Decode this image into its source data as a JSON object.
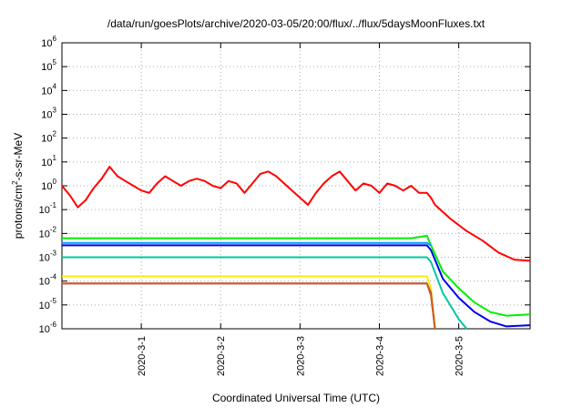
{
  "chart_data": {
    "type": "line",
    "title": "/data/run/goesPlots/archive/2020-03-05/20:00/flux/../flux/5daysMoonFluxes.txt",
    "xlabel": "Coordinated Universal Time (UTC)",
    "ylabel": "protons/cm2-s-sr-MeV",
    "ylabel_parts": {
      "base": "protons/cm",
      "sup": "2",
      "rest": "-s-sr-MeV"
    },
    "yscale": "log",
    "ylim_exp": [
      -6,
      6
    ],
    "y_ticks": [
      {
        "base": "10",
        "exp": "6",
        "e": 6
      },
      {
        "base": "10",
        "exp": "5",
        "e": 5
      },
      {
        "base": "10",
        "exp": "4",
        "e": 4
      },
      {
        "base": "10",
        "exp": "3",
        "e": 3
      },
      {
        "base": "10",
        "exp": "2",
        "e": 2
      },
      {
        "base": "10",
        "exp": "1",
        "e": 1
      },
      {
        "base": "10",
        "exp": "0",
        "e": 0
      },
      {
        "base": "10",
        "exp": "-1",
        "e": -1
      },
      {
        "base": "10",
        "exp": "-2",
        "e": -2
      },
      {
        "base": "10",
        "exp": "-3",
        "e": -3
      },
      {
        "base": "10",
        "exp": "-4",
        "e": -4
      },
      {
        "base": "10",
        "exp": "-5",
        "e": -5
      },
      {
        "base": "10",
        "exp": "-6",
        "e": -6
      }
    ],
    "x_range_days": [
      29.0,
      34.9
    ],
    "x_ticks": [
      {
        "label": "2020-3-1",
        "day": 30
      },
      {
        "label": "2020-3-2",
        "day": 31
      },
      {
        "label": "2020-3-3",
        "day": 32
      },
      {
        "label": "2020-3-4",
        "day": 33
      },
      {
        "label": "2020-3-5",
        "day": 34
      }
    ],
    "grid": "dotted",
    "series": [
      {
        "color": "#ff0000",
        "x_day": [
          29.0,
          29.1,
          29.2,
          29.3,
          29.4,
          29.5,
          29.6,
          29.7,
          29.8,
          29.9,
          30.0,
          30.1,
          30.2,
          30.3,
          30.4,
          30.5,
          30.6,
          30.7,
          30.8,
          30.9,
          31.0,
          31.1,
          31.2,
          31.3,
          31.4,
          31.5,
          31.6,
          31.7,
          31.8,
          31.9,
          32.0,
          32.1,
          32.2,
          32.3,
          32.4,
          32.5,
          32.6,
          32.7,
          32.8,
          32.9,
          33.0,
          33.1,
          33.2,
          33.3,
          33.4,
          33.5,
          33.6,
          33.65,
          33.7,
          33.9,
          34.1,
          34.3,
          34.5,
          34.7,
          34.9
        ],
        "log10_y": [
          0.0,
          -0.4,
          -0.9,
          -0.6,
          -0.1,
          0.3,
          0.8,
          0.4,
          0.2,
          0.0,
          -0.2,
          -0.3,
          0.1,
          0.4,
          0.2,
          0.0,
          0.2,
          0.3,
          0.2,
          0.0,
          -0.1,
          0.2,
          0.1,
          -0.3,
          0.1,
          0.5,
          0.6,
          0.4,
          0.1,
          -0.2,
          -0.5,
          -0.8,
          -0.3,
          0.1,
          0.4,
          0.6,
          0.2,
          -0.2,
          0.1,
          0.0,
          -0.3,
          0.1,
          0.0,
          -0.2,
          0.0,
          -0.3,
          -0.3,
          -0.5,
          -0.8,
          -1.4,
          -1.9,
          -2.3,
          -2.8,
          -3.1,
          -3.15
        ]
      },
      {
        "color": "#00ee00",
        "x_day": [
          29.0,
          29.4,
          29.8,
          30.2,
          30.6,
          31.0,
          31.4,
          31.8,
          32.2,
          32.6,
          33.0,
          33.4,
          33.6,
          33.65,
          33.8,
          34.0,
          34.2,
          34.4,
          34.6,
          34.9
        ],
        "log10_y": [
          -2.2,
          -2.2,
          -2.2,
          -2.2,
          -2.2,
          -2.2,
          -2.2,
          -2.2,
          -2.2,
          -2.2,
          -2.2,
          -2.2,
          -2.1,
          -2.5,
          -3.6,
          -4.3,
          -4.9,
          -5.3,
          -5.45,
          -5.4
        ]
      },
      {
        "color": "#009cff",
        "x_day": [
          29.0,
          29.4,
          29.8,
          30.2,
          30.6,
          31.0,
          31.4,
          31.8,
          32.2,
          32.6,
          33.0,
          33.4,
          33.6,
          33.65
        ],
        "log10_y": [
          -2.4,
          -2.4,
          -2.4,
          -2.4,
          -2.4,
          -2.4,
          -2.4,
          -2.4,
          -2.4,
          -2.4,
          -2.4,
          -2.4,
          -2.4,
          -2.5
        ]
      },
      {
        "color": "#0000ee",
        "x_day": [
          29.0,
          29.4,
          29.8,
          30.2,
          30.6,
          31.0,
          31.4,
          31.8,
          32.2,
          32.6,
          33.0,
          33.4,
          33.6,
          33.65,
          33.8,
          34.0,
          34.2,
          34.4,
          34.6,
          34.9
        ],
        "log10_y": [
          -2.5,
          -2.5,
          -2.5,
          -2.5,
          -2.5,
          -2.5,
          -2.5,
          -2.5,
          -2.5,
          -2.5,
          -2.5,
          -2.5,
          -2.5,
          -2.7,
          -3.9,
          -4.7,
          -5.3,
          -5.7,
          -5.9,
          -5.85
        ]
      },
      {
        "color": "#00c8a0",
        "x_day": [
          29.0,
          29.4,
          29.8,
          30.2,
          30.6,
          31.0,
          31.4,
          31.8,
          32.2,
          32.6,
          33.0,
          33.4,
          33.6,
          33.65,
          33.8,
          34.0,
          34.1
        ],
        "log10_y": [
          -3.0,
          -3.0,
          -3.0,
          -3.0,
          -3.0,
          -3.0,
          -3.0,
          -3.0,
          -3.0,
          -3.0,
          -3.0,
          -3.0,
          -3.0,
          -3.2,
          -4.5,
          -5.6,
          -6.0
        ]
      },
      {
        "color": "#ffee00",
        "x_day": [
          29.0,
          29.4,
          29.8,
          30.2,
          30.6,
          31.0,
          31.4,
          31.8,
          32.2,
          32.6,
          33.0,
          33.4,
          33.6,
          33.65,
          33.7
        ],
        "log10_y": [
          -3.8,
          -3.8,
          -3.8,
          -3.8,
          -3.8,
          -3.8,
          -3.8,
          -3.8,
          -3.8,
          -3.8,
          -3.8,
          -3.8,
          -3.8,
          -4.3,
          -6.0
        ]
      },
      {
        "color": "#8a3a8a",
        "x_day": [
          29.0,
          29.4,
          29.8,
          30.2,
          30.6,
          31.0,
          31.4,
          31.8,
          32.2,
          32.6,
          33.0,
          33.4,
          33.6,
          33.65,
          33.7
        ],
        "log10_y": [
          -4.1,
          -4.1,
          -4.1,
          -4.1,
          -4.1,
          -4.1,
          -4.1,
          -4.1,
          -4.1,
          -4.1,
          -4.1,
          -4.1,
          -4.1,
          -4.5,
          -6.0
        ]
      },
      {
        "color": "#d06020",
        "x_day": [
          29.0,
          29.4,
          29.8,
          30.2,
          30.6,
          31.0,
          31.4,
          31.8,
          32.2,
          32.6,
          33.0,
          33.4,
          33.6,
          33.65,
          33.7
        ],
        "log10_y": [
          -4.1,
          -4.1,
          -4.1,
          -4.1,
          -4.1,
          -4.1,
          -4.1,
          -4.1,
          -4.1,
          -4.1,
          -4.1,
          -4.1,
          -4.1,
          -4.6,
          -6.0
        ]
      }
    ]
  }
}
